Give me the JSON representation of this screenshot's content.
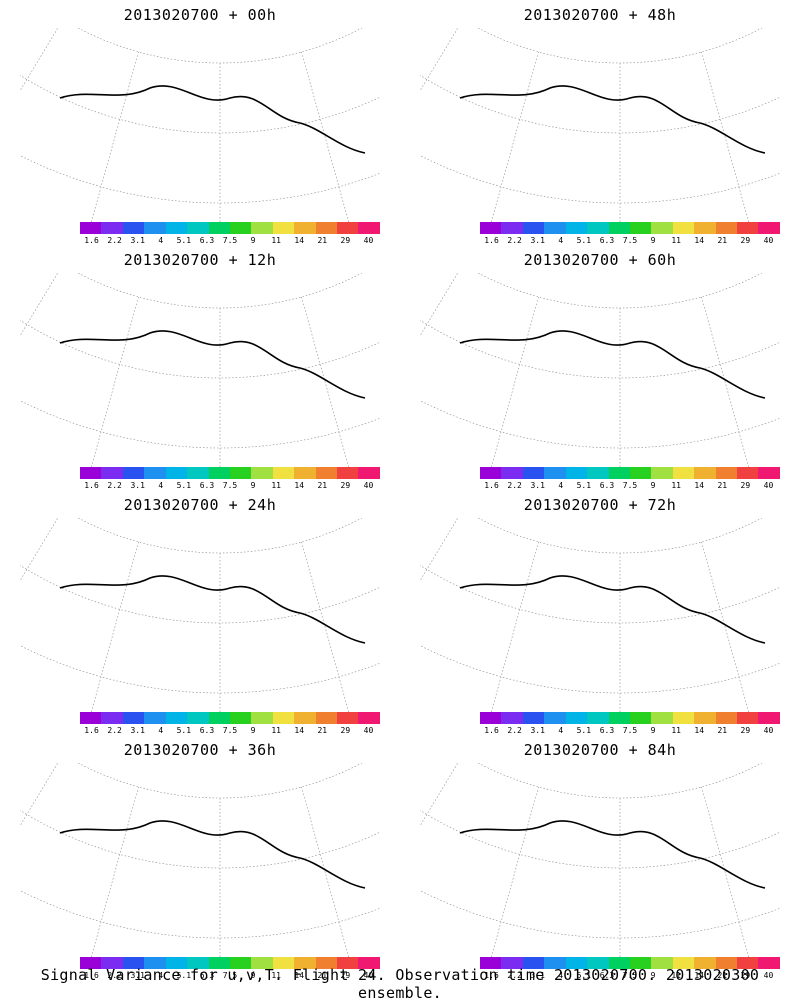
{
  "panels": [
    {
      "title": "2013020700 + 00h",
      "intensity": 0.25,
      "col": 0,
      "row": 0
    },
    {
      "title": "2013020700 + 48h",
      "intensity": 0.5,
      "col": 1,
      "row": 0
    },
    {
      "title": "2013020700 + 12h",
      "intensity": 0.3,
      "col": 0,
      "row": 1
    },
    {
      "title": "2013020700 + 60h",
      "intensity": 0.6,
      "col": 1,
      "row": 1
    },
    {
      "title": "2013020700 + 24h",
      "intensity": 0.38,
      "col": 0,
      "row": 2
    },
    {
      "title": "2013020700 + 72h",
      "intensity": 0.7,
      "col": 1,
      "row": 2
    },
    {
      "title": "2013020700 + 36h",
      "intensity": 0.45,
      "col": 0,
      "row": 3
    },
    {
      "title": "2013020700 + 84h",
      "intensity": 0.78,
      "col": 1,
      "row": 3
    }
  ],
  "colorbar": {
    "labels": [
      "1.6",
      "2.2",
      "3.1",
      "4",
      "5.1",
      "6.3",
      "7.5",
      "9",
      "11",
      "14",
      "21",
      "29",
      "40"
    ],
    "colors": [
      "#9a00d8",
      "#7a2cf0",
      "#2a52f0",
      "#1e90f0",
      "#00b4e8",
      "#00c8c0",
      "#00d060",
      "#28d020",
      "#a0e040",
      "#f0e040",
      "#f0b030",
      "#f08030",
      "#f04040",
      "#f01870"
    ]
  },
  "footer": "Signal Variance for u,v,T. Flight 24. Observation time 2013020700. 2013020300 ensemble."
}
